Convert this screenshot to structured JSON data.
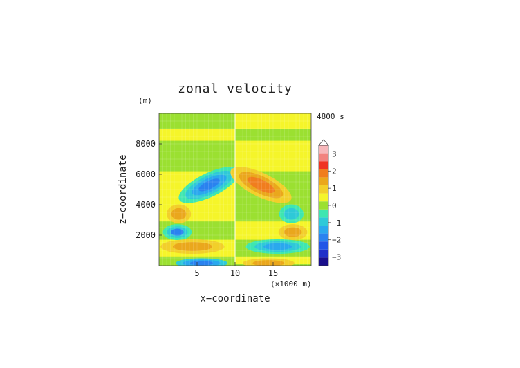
{
  "chart_data": {
    "type": "heatmap",
    "title": "zonal velocity",
    "time_label": "4800 s",
    "xlabel": "x−coordinate",
    "ylabel": "z−coordinate",
    "y_unit": "(m)",
    "x_unit": "(×1000 m)",
    "xlim": [
      0,
      20
    ],
    "ylim": [
      0,
      10000
    ],
    "x_ticks": [
      5,
      10,
      15
    ],
    "x_tick_labels": [
      "5",
      "10",
      "15"
    ],
    "y_ticks": [
      2000,
      4000,
      6000,
      8000
    ],
    "y_tick_labels": [
      "2000",
      "4000",
      "6000",
      "8000"
    ],
    "colorbar": {
      "levels": [
        -3.5,
        -3,
        -2.5,
        -2,
        -1.5,
        -1,
        -0.5,
        0,
        0.5,
        1,
        1.5,
        2,
        2.5,
        3,
        3.5
      ],
      "colors": [
        "#1a0f8c",
        "#1f2fc8",
        "#2255e6",
        "#2a82ef",
        "#2aa8ee",
        "#2ec9d8",
        "#3ee6b0",
        "#9be031",
        "#f5f52a",
        "#f2cf2a",
        "#eaa71c",
        "#f07d1e",
        "#ef3322",
        "#f2837f",
        "#f7b8bb"
      ],
      "tick_values": [
        -3,
        -2,
        -1,
        0,
        1,
        2,
        3
      ],
      "tick_labels": [
        "−3",
        "−2",
        "−1",
        "0",
        "1",
        "2",
        "3"
      ]
    },
    "features": [
      {
        "x": 1,
        "z": 9700,
        "value": -0.4
      },
      {
        "x": 19,
        "z": 9700,
        "value": 0.4
      },
      {
        "x": 1,
        "z": 8800,
        "value": 0.3
      },
      {
        "x": 19,
        "z": 8800,
        "value": -0.3
      },
      {
        "x": 6.6,
        "z": 5200,
        "value": -2.3
      },
      {
        "x": 13.4,
        "z": 5200,
        "value": 2.3
      },
      {
        "x": 2.6,
        "z": 3400,
        "value": 1.2
      },
      {
        "x": 17.4,
        "z": 3400,
        "value": -1.2
      },
      {
        "x": 2.6,
        "z": 2100,
        "value": -2.0
      },
      {
        "x": 17.4,
        "z": 2100,
        "value": 2.0
      },
      {
        "x": 4.5,
        "z": 1200,
        "value": 1.5
      },
      {
        "x": 15.5,
        "z": 1200,
        "value": -1.8
      },
      {
        "x": 5.5,
        "z": 150,
        "value": -2.6
      },
      {
        "x": 14.5,
        "z": 150,
        "value": 1.6
      }
    ]
  }
}
